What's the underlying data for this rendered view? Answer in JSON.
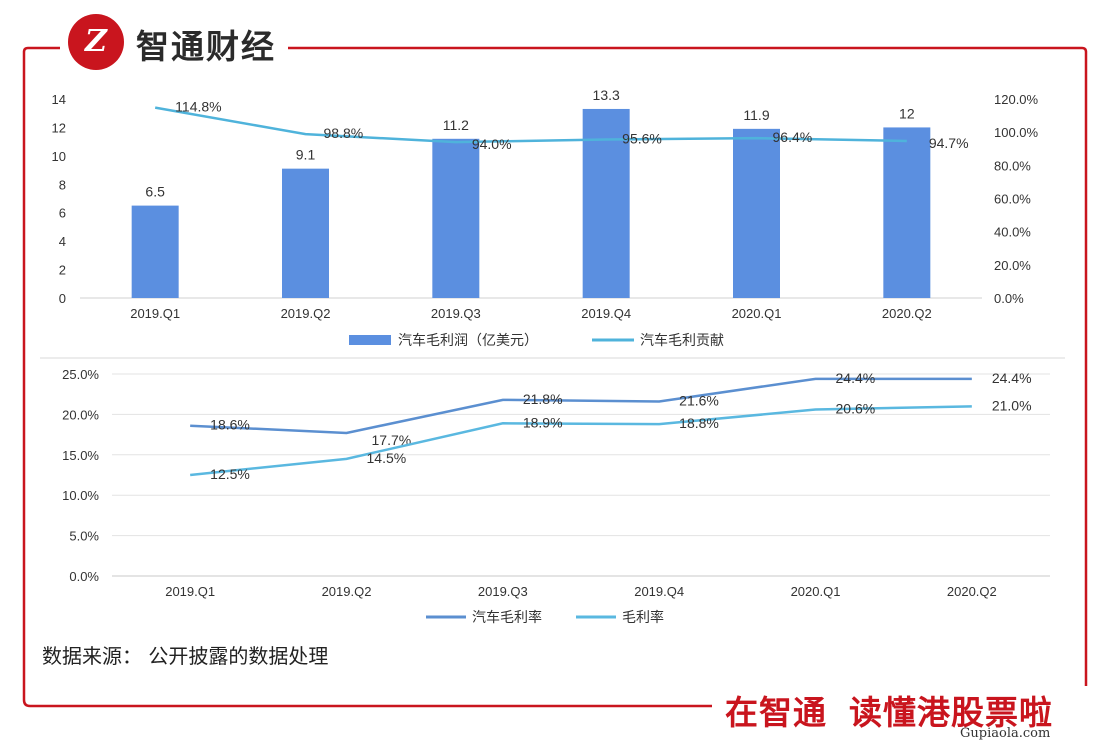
{
  "brand": {
    "name": "智通财经",
    "logo_glyph": "Z"
  },
  "source_note": "数据来源：  公开披露的数据处理",
  "footer": {
    "slogan_1": "在智通",
    "slogan_2": "读懂港股票啦"
  },
  "watermark": "Gupiaola.com",
  "colors": {
    "accent": "#c9151e",
    "bar": "#5b8fe0",
    "line_top": "#4fb3db",
    "line_auto": "#5b8fd0",
    "line_total": "#5ab8e0"
  },
  "chart_data": [
    {
      "type": "bar",
      "categories": [
        "2019.Q1",
        "2019.Q2",
        "2019.Q3",
        "2019.Q4",
        "2020.Q1",
        "2020.Q2"
      ],
      "series": [
        {
          "name": "汽车毛利润（亿美元）",
          "type": "bar",
          "axis": "left",
          "values": [
            6.5,
            9.1,
            11.2,
            13.3,
            11.9,
            12
          ],
          "labels": [
            "6.5",
            "9.1",
            "11.2",
            "13.3",
            "11.9",
            "12"
          ]
        },
        {
          "name": "汽车毛利贡献",
          "type": "line",
          "axis": "right",
          "values": [
            114.8,
            98.8,
            94.0,
            95.6,
            96.4,
            94.7
          ],
          "labels": [
            "114.8%",
            "98.8%",
            "94.0%",
            "95.6%",
            "96.4%",
            "94.7%"
          ]
        }
      ],
      "ylim": [
        0,
        14
      ],
      "yticks": [
        "0",
        "2",
        "4",
        "6",
        "8",
        "10",
        "12",
        "14"
      ],
      "y2lim": [
        0,
        120
      ],
      "y2ticks": [
        "0.0%",
        "20.0%",
        "40.0%",
        "60.0%",
        "80.0%",
        "100.0%",
        "120.0%"
      ],
      "legend": "bottom",
      "grid": false
    },
    {
      "type": "line",
      "categories": [
        "2019.Q1",
        "2019.Q2",
        "2019.Q3",
        "2019.Q4",
        "2020.Q1",
        "2020.Q2"
      ],
      "series": [
        {
          "name": "汽车毛利率",
          "values": [
            18.6,
            17.7,
            21.8,
            21.6,
            24.4,
            24.4
          ],
          "labels": [
            "18.6%",
            "17.7%",
            "21.8%",
            "21.6%",
            "24.4%",
            "24.4%"
          ]
        },
        {
          "name": "毛利率",
          "values": [
            12.5,
            14.5,
            18.9,
            18.8,
            20.6,
            21.0
          ],
          "labels": [
            "12.5%",
            "14.5%",
            "18.9%",
            "18.8%",
            "20.6%",
            "21.0%"
          ]
        }
      ],
      "ylim": [
        0,
        25
      ],
      "yticks": [
        "0.0%",
        "5.0%",
        "10.0%",
        "15.0%",
        "20.0%",
        "25.0%"
      ],
      "legend": "bottom",
      "grid": true
    }
  ]
}
